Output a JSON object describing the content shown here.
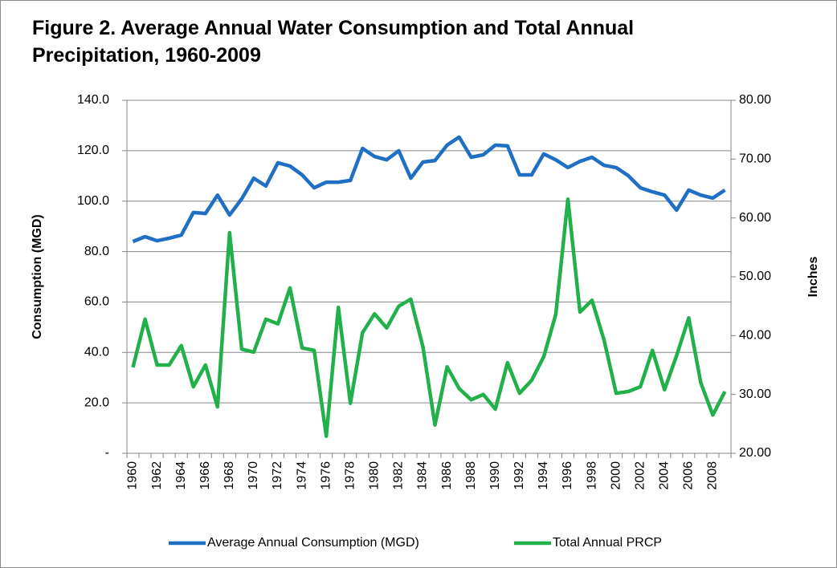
{
  "chart_data": {
    "type": "line",
    "title": "Figure 2. Average Annual Water Consumption and Total Annual Precipitation, 1960-2009",
    "y_label": "Consumption (MGD)",
    "y2_label": "Inches",
    "x": [
      1960,
      1961,
      1962,
      1963,
      1964,
      1965,
      1966,
      1967,
      1968,
      1969,
      1970,
      1971,
      1972,
      1973,
      1974,
      1975,
      1976,
      1977,
      1978,
      1979,
      1980,
      1981,
      1982,
      1983,
      1984,
      1985,
      1986,
      1987,
      1988,
      1989,
      1990,
      1991,
      1992,
      1993,
      1994,
      1995,
      1996,
      1997,
      1998,
      1999,
      2000,
      2001,
      2002,
      2003,
      2004,
      2005,
      2006,
      2007,
      2008,
      2009
    ],
    "xlim": [
      1959.5,
      2009.5
    ],
    "xticks": [
      1960,
      1962,
      1964,
      1966,
      1968,
      1970,
      1972,
      1974,
      1976,
      1978,
      1980,
      1982,
      1984,
      1986,
      1988,
      1990,
      1992,
      1994,
      1996,
      1998,
      2000,
      2002,
      2004,
      2006,
      2008
    ],
    "ylim": [
      0,
      140
    ],
    "yticks": [
      {
        "value": 0,
        "label": "-"
      },
      {
        "value": 20,
        "label": "20.0"
      },
      {
        "value": 40,
        "label": "40.0"
      },
      {
        "value": 60,
        "label": "60.0"
      },
      {
        "value": 80,
        "label": "80.0"
      },
      {
        "value": 100,
        "label": "100.0"
      },
      {
        "value": 120,
        "label": "120.0"
      },
      {
        "value": 140,
        "label": "140.0"
      }
    ],
    "y2lim": [
      20,
      80
    ],
    "y2ticks": [
      {
        "value": 20,
        "label": "20.00"
      },
      {
        "value": 30,
        "label": "30.00"
      },
      {
        "value": 40,
        "label": "40.00"
      },
      {
        "value": 50,
        "label": "50.00"
      },
      {
        "value": 60,
        "label": "60.00"
      },
      {
        "value": 70,
        "label": "70.00"
      },
      {
        "value": 80,
        "label": "80.00"
      }
    ],
    "grid": true,
    "legend": "bottom",
    "series": [
      {
        "name": "Average Annual Consumption (MGD)",
        "color": "#1f6fc5",
        "values": [
          84.0,
          85.9,
          84.3,
          85.3,
          86.5,
          95.5,
          95.1,
          102.4,
          94.5,
          100.9,
          109.1,
          106.0,
          115.2,
          113.9,
          110.4,
          105.3,
          107.5,
          107.5,
          108.2,
          120.9,
          117.7,
          116.4,
          120.0,
          109.1,
          115.5,
          116.1,
          122.2,
          125.4,
          117.4,
          118.4,
          122.2,
          121.9,
          110.4,
          110.4,
          118.7,
          116.4,
          113.3,
          115.8,
          117.4,
          114.2,
          113.3,
          110.1,
          105.3,
          103.7,
          102.4,
          96.4,
          104.4,
          102.4,
          101.2,
          104.4
        ]
      },
      {
        "name": "Total Annual PRCP",
        "color": "#22b04a",
        "axis": "y2",
        "values": [
          34.6,
          42.8,
          35.0,
          35.0,
          38.3,
          31.3,
          35.0,
          27.9,
          57.5,
          37.7,
          37.2,
          42.8,
          42.0,
          48.1,
          37.9,
          37.5,
          22.9,
          44.8,
          28.5,
          40.5,
          43.7,
          41.3,
          45.0,
          46.2,
          38.1,
          24.8,
          34.7,
          31.0,
          29.1,
          30.0,
          27.5,
          35.4,
          30.2,
          32.4,
          36.4,
          43.6,
          63.2,
          44.0,
          46.0,
          39.2,
          30.2,
          30.5,
          31.3,
          37.5,
          30.8,
          36.6,
          43.0,
          32.0,
          26.5,
          30.5
        ]
      }
    ]
  }
}
